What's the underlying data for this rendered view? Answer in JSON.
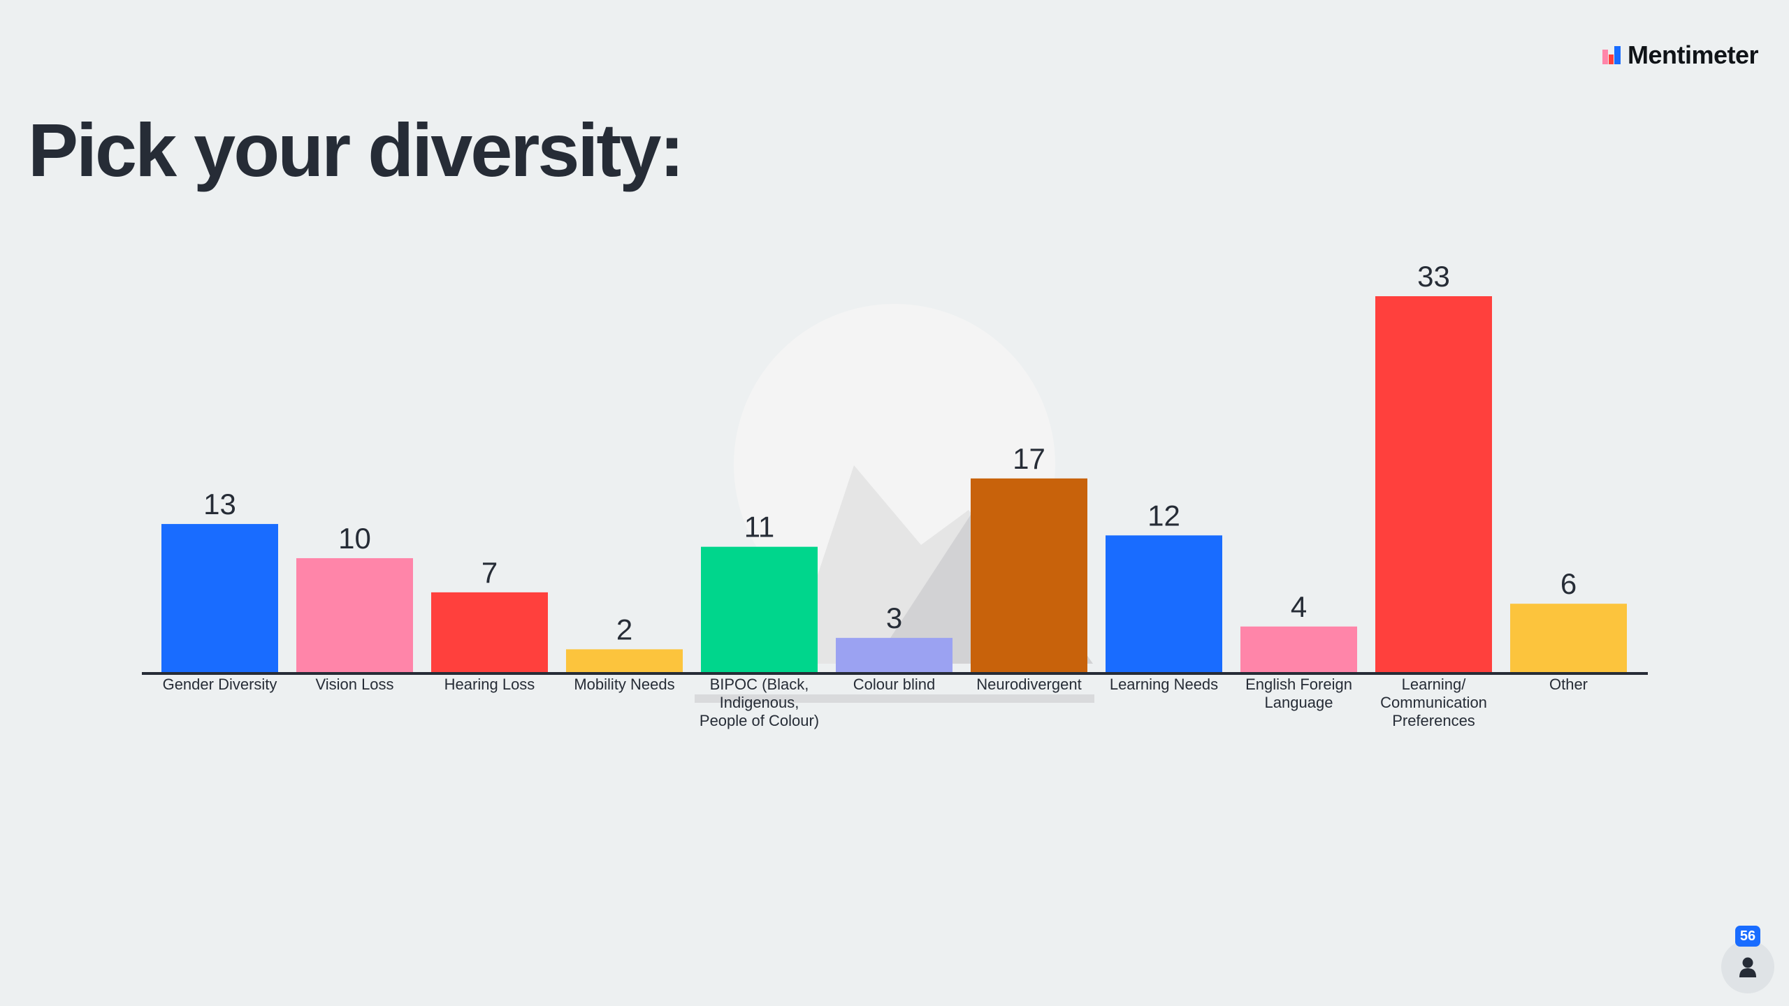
{
  "slide": {
    "title": "Pick your diversity:",
    "brand": "Mentimeter",
    "participant_count": "56"
  },
  "icons": {
    "brand_logo": "mentimeter-logo-icon",
    "participants": "person-icon"
  },
  "chart_data": {
    "type": "bar",
    "title": "",
    "xlabel": "",
    "ylabel": "",
    "categories": [
      "Gender Diversity",
      "Vision Loss",
      "Hearing Loss",
      "Mobility Needs",
      "BIPOC (Black, Indigenous, People of Colour)",
      "Colour blind",
      "Neurodivergent",
      "Learning Needs",
      "English Foreign Language",
      "Learning/ Communication Preferences",
      "Other"
    ],
    "values": [
      13,
      10,
      7,
      2,
      11,
      3,
      17,
      12,
      4,
      33,
      6
    ],
    "colors": [
      "#196cff",
      "#ff85a9",
      "#ff403d",
      "#fcc43d",
      "#00d68c",
      "#9ba2f2",
      "#c8620b",
      "#196cff",
      "#ff85a9",
      "#ff403d",
      "#fcc43d"
    ],
    "ylim": [
      0,
      33
    ],
    "grid": false,
    "legend": "none",
    "data_labels": true
  }
}
